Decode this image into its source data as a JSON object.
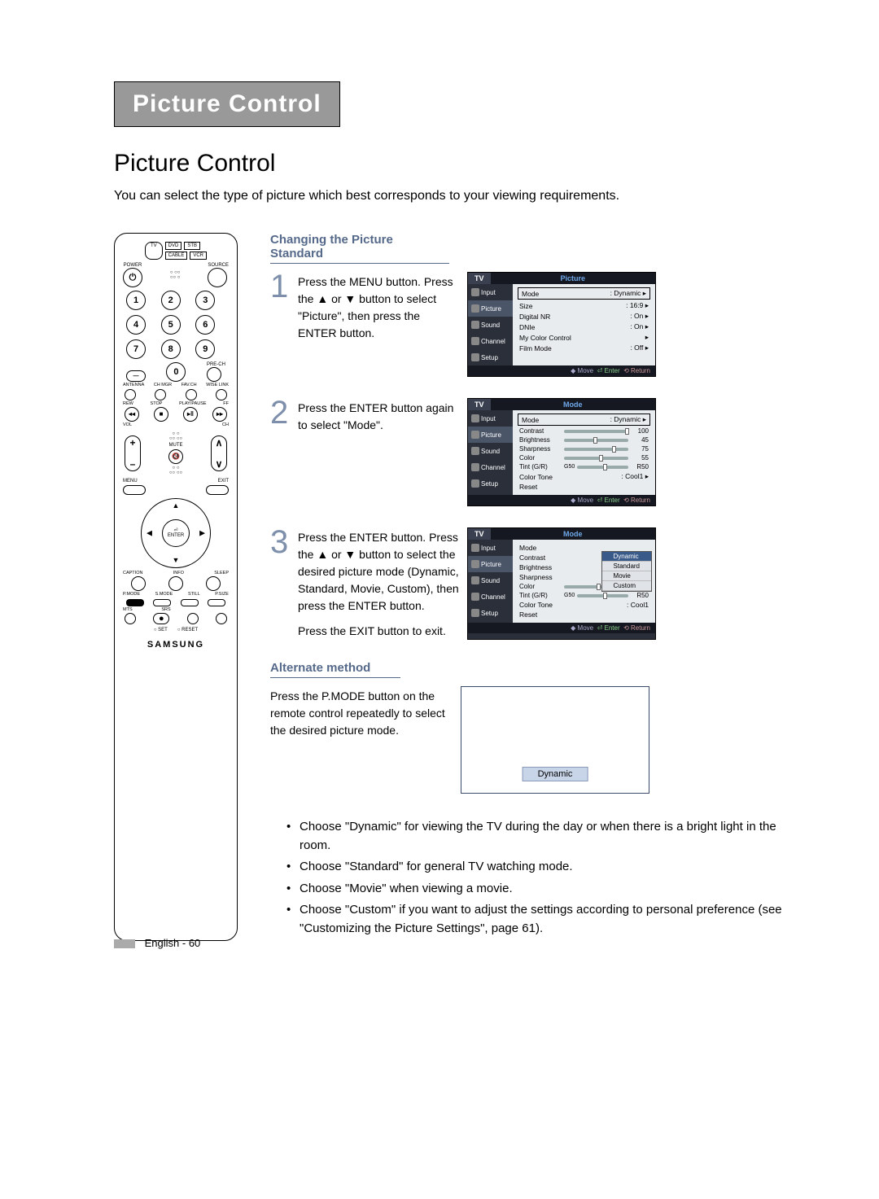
{
  "header_tab": "Picture Control",
  "section_title": "Picture Control",
  "intro": "You can select the type of picture which best corresponds to your viewing requirements.",
  "remote": {
    "modes_top": [
      "DVD",
      "STB"
    ],
    "mode_oval": "TV",
    "modes_bottom": [
      "CABLE",
      "VCR"
    ],
    "power": "POWER",
    "source": "SOURCE",
    "nums": [
      "1",
      "2",
      "3",
      "4",
      "5",
      "6",
      "7",
      "8",
      "9"
    ],
    "zero": "0",
    "dash": "—",
    "prech": "PRE-CH",
    "tiny_labels": [
      "ANTENNA",
      "CH MGR",
      "FAV.CH",
      "WISE LINK"
    ],
    "transport": [
      "REW",
      "STOP",
      "PLAY/PAUSE",
      "FF"
    ],
    "vol": "VOL",
    "ch": "CH",
    "mute": "MUTE",
    "menu": "MENU",
    "exit": "EXIT",
    "enter": "ENTER",
    "caption_row": [
      "CAPTION",
      "INFO",
      "SLEEP"
    ],
    "pmode_row": [
      "P.MODE",
      "S.MODE",
      "STILL",
      "P.SIZE"
    ],
    "srs_row": [
      "MTS",
      "SRS",
      "",
      ""
    ],
    "set": "SET",
    "reset": "RESET",
    "brand": "SAMSUNG"
  },
  "sub1": "Changing the Picture Standard",
  "steps": [
    {
      "n": "1",
      "text": "Press the MENU button. Press the ▲ or ▼ button to select \"Picture\", then press the ENTER button."
    },
    {
      "n": "2",
      "text": "Press the ENTER button again to select \"Mode\"."
    },
    {
      "n": "3",
      "text": "Press the ENTER button. Press the ▲ or ▼ button to select the desired picture mode (Dynamic, Standard, Movie, Custom), then press the ENTER button.",
      "extra": "Press the EXIT button to exit."
    }
  ],
  "osd": {
    "tv": "TV",
    "side": [
      "Input",
      "Picture",
      "Sound",
      "Channel",
      "Setup"
    ],
    "hint_move": "◆ Move",
    "hint_enter": "⏎ Enter",
    "hint_return": "⟲ Return",
    "menu1": {
      "title": "Picture",
      "rows": [
        {
          "k": "Mode",
          "v": "Dynamic"
        },
        {
          "k": "Size",
          "v": "16:9"
        },
        {
          "k": "Digital NR",
          "v": "On"
        },
        {
          "k": "DNIe",
          "v": "On"
        },
        {
          "k": "My Color Control",
          "v": ""
        },
        {
          "k": "Film Mode",
          "v": "Off"
        }
      ]
    },
    "menu2": {
      "title": "Mode",
      "mode_val": "Dynamic",
      "sliders": [
        {
          "k": "Contrast",
          "v": "100",
          "pct": 100
        },
        {
          "k": "Brightness",
          "v": "45",
          "pct": 45
        },
        {
          "k": "Sharpness",
          "v": "75",
          "pct": 75
        },
        {
          "k": "Color",
          "v": "55",
          "pct": 55
        },
        {
          "k": "Tint (G/R)",
          "v": "R50",
          "pct": 50,
          "prefix": "G50"
        }
      ],
      "colortone": {
        "k": "Color Tone",
        "v": "Cool1"
      },
      "reset": "Reset"
    },
    "menu3": {
      "title": "Mode",
      "opts": [
        "Dynamic",
        "Standard",
        "Movie",
        "Custom"
      ],
      "sliders": [
        {
          "k": "Color",
          "v": "50",
          "pct": 50
        },
        {
          "k": "Tint (G/R)",
          "v": "R50",
          "pct": 50,
          "prefix": "G50"
        }
      ],
      "rows_above": [
        "Mode",
        "Contrast",
        "Brightness",
        "Sharpness"
      ],
      "colortone": {
        "k": "Color Tone",
        "v": "Cool1"
      },
      "reset": "Reset"
    }
  },
  "sub2": "Alternate method",
  "alt_text": "Press the P.MODE button on the remote control repeatedly to select the desired picture mode.",
  "alt_tag": "Dynamic",
  "bullets": [
    "Choose \"Dynamic\" for viewing the TV during the day or when there is a bright light in the room.",
    "Choose \"Standard\" for general TV watching mode.",
    "Choose \"Movie\" when viewing a movie.",
    "Choose \"Custom\" if you want to adjust the settings according to personal preference (see \"Customizing the Picture Settings\", page 61)."
  ],
  "footer": "English - 60"
}
